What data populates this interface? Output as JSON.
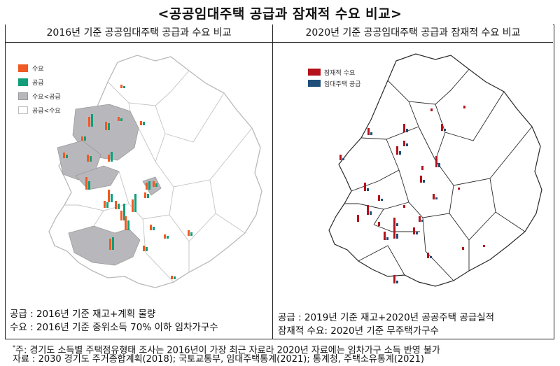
{
  "title": "<공공임대주택 공급과 잠재적 수요 비교>",
  "left_panel": {
    "heading": "2016년 기준 공공임대주택 공급과 수요 비교",
    "legend": [
      {
        "label": "수요",
        "color": "#f15a22"
      },
      {
        "label": "공급",
        "color": "#0f9e78"
      },
      {
        "label": "수요<공급",
        "color": "#b8b8bc"
      },
      {
        "label": "공급<수요",
        "color": "#ffffff"
      }
    ],
    "note_lines": [
      "공급 : 2016년 기준 재고+계획 물량",
      "수요 : 2016년 기준 중위소득 70% 이하 임차가구수"
    ]
  },
  "right_panel": {
    "heading": "2020년 기준 공공임대주택 공급과 잠재적 수요 비교",
    "legend": [
      {
        "label": "잠재적 수요",
        "color": "#b5121b"
      },
      {
        "label": "임대주택 공급",
        "color": "#1f4e79"
      }
    ],
    "note_lines": [
      "공급 : 2019년 기준 재고+2020년 공공주택 공급실적",
      "잠재적 수요: 2020년 기준 무주택가구수"
    ]
  },
  "footnote": {
    "marker": "*",
    "text": "주: 경기도 소득별 주택점유형태 조사는 2016년이 가장 최근 자료라 2020년 자료에는 임차가구 소득 반영 불가"
  },
  "source": "자료 : 2030 경기도 주거종합계획(2018); 국토교통부, 임대주택통계(2021); 통계청, 주택소유통계(2021)"
}
